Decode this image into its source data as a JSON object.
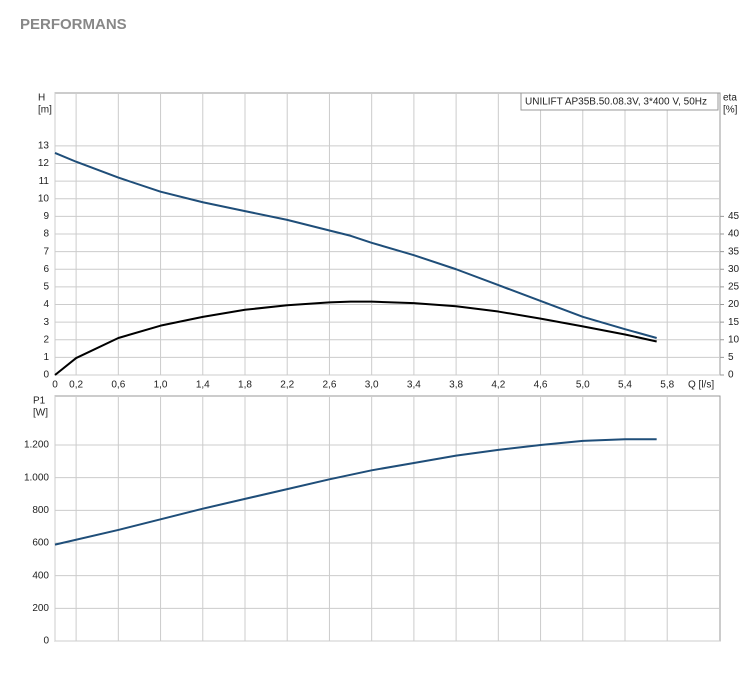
{
  "title": "PERFORMANS",
  "chart_data": [
    {
      "type": "line",
      "legend_text": "UNILIFT AP35B.50.08.3V, 3*400 V, 50Hz",
      "y_label": [
        "H",
        "[m]"
      ],
      "y2_label": [
        "eta",
        "[%]"
      ],
      "x_label": "Q [l/s]",
      "x": [
        0,
        0.2,
        0.6,
        1.0,
        1.4,
        1.8,
        2.2,
        2.6,
        2.8,
        3.0,
        3.4,
        3.8,
        4.2,
        4.6,
        5.0,
        5.4,
        5.7
      ],
      "series": [
        {
          "name": "H",
          "color": "#1f4e79",
          "values": [
            12.6,
            12.1,
            11.2,
            10.4,
            9.8,
            9.3,
            8.8,
            8.2,
            7.9,
            7.5,
            6.8,
            6.0,
            5.1,
            4.2,
            3.3,
            2.6,
            2.1
          ]
        },
        {
          "name": "eta",
          "color": "#000000",
          "axis": "y2",
          "values": [
            0,
            4.8,
            10.5,
            14,
            16.5,
            18.5,
            19.8,
            20.6,
            20.8,
            20.8,
            20.4,
            19.5,
            18,
            16,
            13.8,
            11.5,
            9.5
          ]
        }
      ],
      "xlim": [
        0,
        6.3
      ],
      "xticks": [
        0,
        {
          "value": 0.2,
          "label": "0,2"
        },
        {
          "value": 0.6,
          "label": "0,6"
        },
        {
          "value": 1.0,
          "label": "1,0"
        },
        {
          "value": 1.4,
          "label": "1,4"
        },
        {
          "value": 1.8,
          "label": "1,8"
        },
        {
          "value": 2.2,
          "label": "2,2"
        },
        {
          "value": 2.6,
          "label": "2,6"
        },
        {
          "value": 3.0,
          "label": "3,0"
        },
        {
          "value": 3.4,
          "label": "3,4"
        },
        {
          "value": 3.8,
          "label": "3,8"
        },
        {
          "value": 4.2,
          "label": "4,2"
        },
        {
          "value": 4.6,
          "label": "4,6"
        },
        {
          "value": 5.0,
          "label": "5,0"
        },
        {
          "value": 5.4,
          "label": "5,4"
        },
        {
          "value": 5.8,
          "label": "5,8"
        }
      ],
      "ylim": [
        0,
        16
      ],
      "yticks": [
        0,
        1,
        2,
        3,
        4,
        5,
        6,
        7,
        8,
        9,
        10,
        11,
        12,
        13
      ],
      "y2lim": [
        0,
        80
      ],
      "y2ticks": [
        0,
        5,
        10,
        15,
        20,
        25,
        30,
        35,
        40,
        45
      ],
      "grid": true
    },
    {
      "type": "line",
      "y_label": [
        "P1",
        "[W]"
      ],
      "x": [
        0,
        0.6,
        1.0,
        1.4,
        1.8,
        2.2,
        2.6,
        3.0,
        3.4,
        3.8,
        4.2,
        4.6,
        5.0,
        5.4,
        5.7
      ],
      "series": [
        {
          "name": "P1",
          "color": "#1f4e79",
          "values": [
            590,
            680,
            745,
            810,
            870,
            930,
            990,
            1045,
            1090,
            1135,
            1170,
            1200,
            1225,
            1235,
            1235
          ]
        }
      ],
      "xlim": [
        0,
        6.3
      ],
      "ylim": [
        0,
        1500
      ],
      "yticks": [
        0,
        200,
        400,
        600,
        800,
        {
          "value": 1000,
          "label": "1.000"
        },
        {
          "value": 1200,
          "label": "1.200"
        }
      ],
      "grid": true
    }
  ]
}
